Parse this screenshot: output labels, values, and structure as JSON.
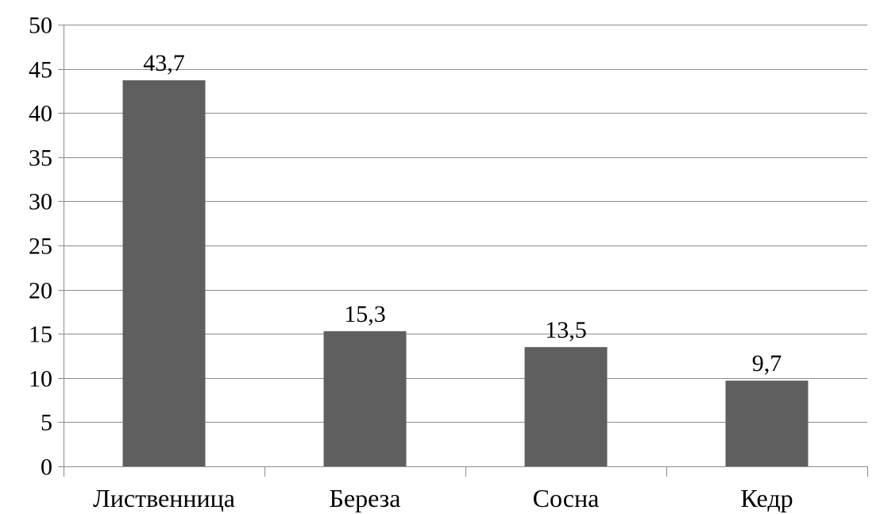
{
  "chart_data": {
    "type": "bar",
    "categories": [
      "Лиственница",
      "Береза",
      "Сосна",
      "Кедр"
    ],
    "values": [
      43.7,
      15.3,
      13.5,
      9.7
    ],
    "value_labels": [
      "43,7",
      "15,3",
      "13,5",
      "9,7"
    ],
    "ylim": [
      0,
      50
    ],
    "yticks": [
      0,
      5,
      10,
      15,
      20,
      25,
      30,
      35,
      40,
      45,
      50
    ],
    "grid": true,
    "legend": "none",
    "bar_color": "#5f5f5f",
    "title": "",
    "xlabel": "",
    "ylabel": ""
  }
}
